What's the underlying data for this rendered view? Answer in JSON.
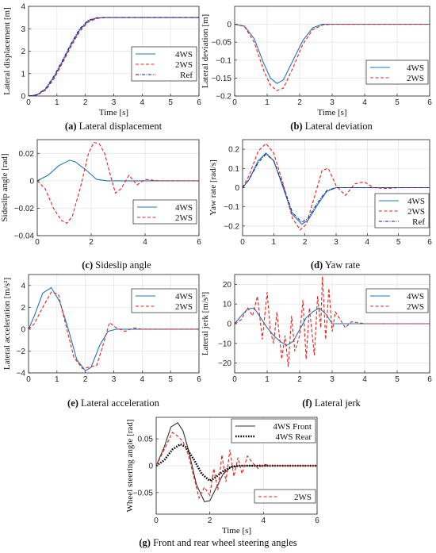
{
  "colors": {
    "4WS": "#1f77b4",
    "2WS": "#e8201c",
    "Ref": "#1a1aa6",
    "4WS Rear": "#000000"
  },
  "chart_data": [
    {
      "id": "a",
      "type": "line",
      "caption_tag": "(a)",
      "caption_text": " Lateral displacement",
      "xlabel": "Time [s]",
      "ylabel": "Lateral displacement [m]",
      "xlim": [
        0,
        6
      ],
      "ylim": [
        0,
        4
      ],
      "xticks": [
        0,
        1,
        2,
        3,
        4,
        5,
        6
      ],
      "yticks": [
        0,
        1,
        2,
        3,
        4
      ],
      "grid": true,
      "legend_position": "right-middle",
      "series": [
        {
          "name": "4WS",
          "style": "solid",
          "x": [
            0,
            0.3,
            0.6,
            0.9,
            1.2,
            1.5,
            1.8,
            2.1,
            2.4,
            2.7,
            3,
            4,
            5,
            6
          ],
          "y": [
            0,
            0.05,
            0.3,
            0.85,
            1.55,
            2.3,
            2.95,
            3.35,
            3.48,
            3.5,
            3.5,
            3.5,
            3.5,
            3.5
          ]
        },
        {
          "name": "2WS",
          "style": "dashed",
          "x": [
            0,
            0.3,
            0.6,
            0.9,
            1.2,
            1.5,
            1.8,
            2.1,
            2.4,
            2.7,
            3,
            4,
            5,
            6
          ],
          "y": [
            0,
            0.04,
            0.26,
            0.78,
            1.48,
            2.22,
            2.88,
            3.3,
            3.46,
            3.5,
            3.5,
            3.5,
            3.5,
            3.5
          ]
        },
        {
          "name": "Ref",
          "style": "dashdot",
          "x": [
            0,
            0.3,
            0.6,
            0.9,
            1.2,
            1.5,
            1.8,
            2.1,
            2.4,
            2.7,
            3,
            4,
            5,
            6
          ],
          "y": [
            0,
            0.06,
            0.33,
            0.9,
            1.6,
            2.35,
            3.0,
            3.38,
            3.49,
            3.5,
            3.5,
            3.5,
            3.5,
            3.5
          ]
        }
      ]
    },
    {
      "id": "b",
      "type": "line",
      "caption_tag": "(b)",
      "caption_text": " Lateral deviation",
      "xlabel": "Time [s]",
      "ylabel": "Lateral deviation [m]",
      "xlim": [
        0,
        6
      ],
      "ylim": [
        -0.2,
        0.05
      ],
      "xticks": [
        0,
        1,
        2,
        3,
        4,
        5,
        6
      ],
      "yticks": [
        0,
        -0.05,
        -0.1,
        -0.15,
        -0.2
      ],
      "grid": true,
      "legend_position": "bottom-right",
      "series": [
        {
          "name": "4WS",
          "style": "solid",
          "x": [
            0,
            0.3,
            0.6,
            0.9,
            1.1,
            1.3,
            1.5,
            1.8,
            2.1,
            2.4,
            2.7,
            3,
            4,
            5,
            6
          ],
          "y": [
            0,
            -0.005,
            -0.04,
            -0.11,
            -0.15,
            -0.165,
            -0.155,
            -0.1,
            -0.045,
            -0.01,
            0,
            0,
            0,
            0,
            0
          ]
        },
        {
          "name": "2WS",
          "style": "dashed",
          "x": [
            0,
            0.3,
            0.6,
            0.9,
            1.1,
            1.3,
            1.5,
            1.8,
            2.1,
            2.4,
            2.7,
            3,
            4,
            5,
            6
          ],
          "y": [
            0,
            -0.006,
            -0.05,
            -0.13,
            -0.17,
            -0.185,
            -0.178,
            -0.12,
            -0.055,
            -0.015,
            -0.002,
            0,
            0,
            0,
            0
          ]
        }
      ]
    },
    {
      "id": "c",
      "type": "line",
      "caption_tag": "(c)",
      "caption_text": " Sideslip angle",
      "xlabel": "",
      "ylabel": "Sideslip angle [rad]",
      "xlim": [
        0,
        6
      ],
      "ylim": [
        -0.04,
        0.03
      ],
      "xticks": [
        0,
        2,
        4,
        6
      ],
      "yticks": [
        0.02,
        0,
        -0.02,
        -0.04
      ],
      "grid": true,
      "legend_position": "bottom-right",
      "series": [
        {
          "name": "4WS",
          "style": "solid",
          "x": [
            0,
            0.4,
            0.8,
            1.2,
            1.4,
            1.8,
            2.2,
            2.6,
            3,
            4,
            5,
            6
          ],
          "y": [
            0,
            0.004,
            0.011,
            0.015,
            0.014,
            0.008,
            0.001,
            0,
            0,
            0,
            0,
            0
          ]
        },
        {
          "name": "2WS",
          "style": "dashed",
          "x": [
            0,
            0.3,
            0.6,
            0.9,
            1.1,
            1.3,
            1.6,
            1.9,
            2.1,
            2.3,
            2.5,
            2.7,
            2.9,
            3.1,
            3.4,
            3.7,
            4,
            4.5,
            5,
            6
          ],
          "y": [
            0,
            -0.006,
            -0.02,
            -0.029,
            -0.031,
            -0.026,
            -0.005,
            0.02,
            0.028,
            0.027,
            0.02,
            0.005,
            -0.009,
            -0.006,
            0.004,
            -0.003,
            0.001,
            0,
            0,
            0
          ]
        }
      ]
    },
    {
      "id": "d",
      "type": "line",
      "caption_tag": "(d)",
      "caption_text": " Yaw rate",
      "xlabel": "",
      "ylabel": "Yaw rate [rad/s]",
      "xlim": [
        0,
        6
      ],
      "ylim": [
        -0.25,
        0.25
      ],
      "xticks": [
        0,
        1,
        2,
        3,
        4,
        5,
        6
      ],
      "yticks": [
        0.2,
        0.1,
        0,
        -0.1,
        -0.2
      ],
      "grid": true,
      "legend_position": "bottom-right",
      "series": [
        {
          "name": "4WS",
          "style": "solid",
          "x": [
            0,
            0.2,
            0.5,
            0.75,
            1,
            1.3,
            1.6,
            1.9,
            2.1,
            2.4,
            2.7,
            3,
            4,
            5,
            6
          ],
          "y": [
            0,
            0.04,
            0.14,
            0.18,
            0.14,
            0,
            -0.14,
            -0.19,
            -0.17,
            -0.09,
            -0.02,
            0,
            0,
            0,
            0
          ]
        },
        {
          "name": "2WS",
          "style": "dashed",
          "x": [
            0,
            0.2,
            0.5,
            0.75,
            1,
            1.3,
            1.6,
            1.85,
            2.05,
            2.3,
            2.55,
            2.75,
            3,
            3.3,
            3.6,
            3.9,
            4.2,
            4.6,
            5,
            6
          ],
          "y": [
            0,
            0.06,
            0.19,
            0.23,
            0.18,
            0.02,
            -0.16,
            -0.22,
            -0.19,
            -0.05,
            0.09,
            0.1,
            0.01,
            -0.04,
            0.02,
            0.03,
            0,
            -0.005,
            0,
            0
          ]
        },
        {
          "name": "Ref",
          "style": "dashdot",
          "x": [
            0,
            0.2,
            0.5,
            0.75,
            1,
            1.3,
            1.6,
            1.9,
            2.1,
            2.4,
            2.7,
            3,
            4,
            5,
            6
          ],
          "y": [
            0,
            0.04,
            0.13,
            0.175,
            0.14,
            0.01,
            -0.13,
            -0.18,
            -0.16,
            -0.08,
            -0.015,
            0,
            0,
            0,
            0
          ]
        }
      ]
    },
    {
      "id": "e",
      "type": "line",
      "caption_tag": "(e)",
      "caption_text": " Lateral acceleration",
      "xlabel": "",
      "ylabel": "Lateral acceleration [m/s²]",
      "xlim": [
        0,
        6
      ],
      "ylim": [
        -4,
        5
      ],
      "xticks": [
        0,
        1,
        2,
        3,
        4,
        5,
        6
      ],
      "yticks": [
        4,
        2,
        0,
        -2,
        -4
      ],
      "grid": true,
      "legend_position": "top-right",
      "series": [
        {
          "name": "4WS",
          "style": "solid",
          "x": [
            0,
            0.2,
            0.5,
            0.8,
            1.1,
            1.4,
            1.7,
            2,
            2.2,
            2.5,
            2.8,
            3.1,
            3.5,
            4,
            5,
            6
          ],
          "y": [
            0,
            1.2,
            3.3,
            3.8,
            2.5,
            0,
            -2.8,
            -3.8,
            -3.5,
            -1.5,
            -0.2,
            0,
            0,
            0,
            0,
            0
          ]
        },
        {
          "name": "2WS",
          "style": "dashed",
          "x": [
            0,
            0.2,
            0.5,
            0.8,
            1.05,
            1.3,
            1.6,
            1.9,
            2.1,
            2.4,
            2.65,
            2.85,
            3.1,
            3.4,
            3.7,
            4,
            4.5,
            5,
            6
          ],
          "y": [
            0,
            0.5,
            2.0,
            3.4,
            3.2,
            0.5,
            -2.6,
            -3.6,
            -3.5,
            -3.3,
            -1.2,
            0.6,
            0.1,
            -0.2,
            0.1,
            0,
            0,
            0,
            0
          ]
        }
      ]
    },
    {
      "id": "f",
      "type": "line",
      "caption_tag": "(f)",
      "caption_text": " Lateral jerk",
      "xlabel": "",
      "ylabel": "Lateral jerk [m/s³]",
      "xlim": [
        0,
        6
      ],
      "ylim": [
        -25,
        25
      ],
      "xticks": [
        0,
        1,
        2,
        3,
        4,
        5,
        6
      ],
      "yticks": [
        20,
        10,
        0,
        -10,
        -20
      ],
      "grid": true,
      "legend_position": "top-right",
      "series": [
        {
          "name": "4WS",
          "style": "solid",
          "x": [
            0,
            0.2,
            0.4,
            0.6,
            0.8,
            1,
            1.2,
            1.4,
            1.6,
            1.8,
            2,
            2.2,
            2.4,
            2.6,
            2.8,
            3,
            3.5,
            4,
            5,
            6
          ],
          "y": [
            0,
            4,
            7.5,
            8,
            3,
            -2,
            -6,
            -9,
            -11,
            -9,
            -3,
            3,
            6,
            8,
            5,
            0,
            0,
            0,
            0,
            0
          ]
        },
        {
          "name": "2WS",
          "style": "dashed",
          "x": [
            0,
            0.2,
            0.4,
            0.55,
            0.7,
            0.85,
            1,
            1.1,
            1.2,
            1.3,
            1.45,
            1.55,
            1.65,
            1.75,
            1.85,
            2,
            2.1,
            2.2,
            2.3,
            2.45,
            2.55,
            2.65,
            2.7,
            2.8,
            2.9,
            3,
            3.1,
            3.25,
            3.4,
            3.6,
            4,
            5,
            6
          ],
          "y": [
            0,
            2,
            8,
            4,
            14,
            -8,
            16,
            -4,
            -10,
            6,
            -18,
            -6,
            -22,
            4,
            -14,
            -6,
            12,
            -18,
            8,
            -16,
            14,
            -2,
            24,
            -8,
            18,
            -4,
            6,
            2,
            -2,
            1,
            0,
            0,
            0
          ]
        }
      ]
    },
    {
      "id": "g",
      "type": "line",
      "caption_tag": "(g)",
      "caption_text": " Front and rear wheel steering angles",
      "xlabel": "Time [s]",
      "ylabel": "Wheel steering angle [rad]",
      "xlim": [
        0,
        6
      ],
      "ylim": [
        -0.09,
        0.09
      ],
      "xticks": [
        0,
        2,
        4,
        6
      ],
      "yticks": [
        0.05,
        0,
        -0.05
      ],
      "grid": true,
      "legend_position": "top-right and bottom-right",
      "series": [
        {
          "name": "4WS Front",
          "style": "solid",
          "x": [
            0,
            0.3,
            0.55,
            0.8,
            1,
            1.2,
            1.5,
            1.8,
            2,
            2.2,
            2.5,
            2.8,
            3.1,
            3.5,
            4,
            5,
            6
          ],
          "y": [
            0,
            0.035,
            0.072,
            0.08,
            0.065,
            0.03,
            -0.035,
            -0.067,
            -0.065,
            -0.045,
            -0.015,
            -0.002,
            0,
            0,
            0,
            0,
            0
          ]
        },
        {
          "name": "4WS Rear",
          "style": "dotted",
          "x": [
            0,
            0.3,
            0.6,
            0.9,
            1.1,
            1.4,
            1.7,
            2,
            2.2,
            2.5,
            2.8,
            3.1,
            3.5,
            4,
            5,
            6
          ],
          "y": [
            0,
            0.01,
            0.03,
            0.04,
            0.035,
            0.012,
            -0.015,
            -0.028,
            -0.022,
            -0.01,
            -0.002,
            0,
            0,
            0,
            0,
            0
          ]
        },
        {
          "name": "2WS",
          "style": "dashed",
          "x": [
            0,
            0.3,
            0.6,
            0.8,
            1,
            1.2,
            1.4,
            1.6,
            1.8,
            2,
            2.15,
            2.3,
            2.45,
            2.6,
            2.75,
            2.9,
            3.05,
            3.2,
            3.4,
            3.6,
            3.8,
            4,
            4.3,
            4.6,
            5,
            6
          ],
          "y": [
            0,
            0.03,
            0.062,
            0.055,
            0.045,
            0.02,
            -0.02,
            -0.06,
            -0.04,
            -0.055,
            -0.005,
            -0.045,
            0.02,
            -0.03,
            0.03,
            -0.02,
            0.015,
            -0.015,
            0.018,
            0.005,
            -0.005,
            0.003,
            0,
            0,
            0,
            0
          ]
        }
      ]
    }
  ]
}
